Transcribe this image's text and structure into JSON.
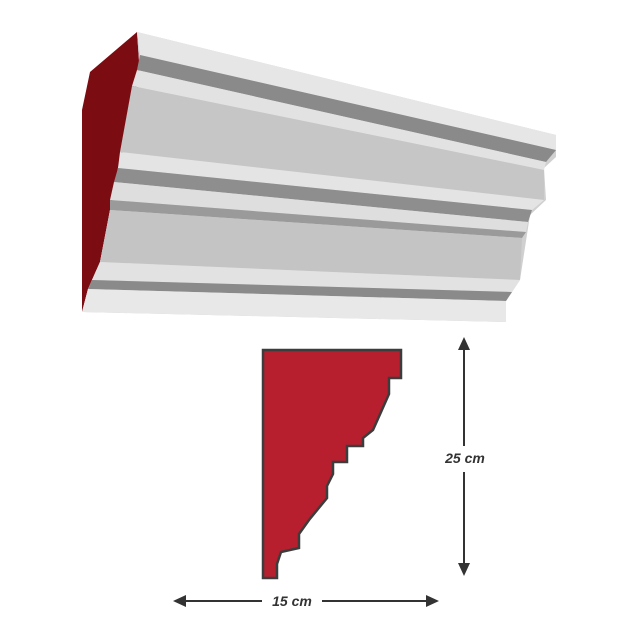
{
  "labels": {
    "height": "25 cm",
    "width": "15 cm"
  },
  "colors": {
    "profile_fill": "#b71f2e",
    "profile_stroke": "#3c3c3c",
    "end_face": "#7a0c12",
    "molding_light": "#dcdcdc",
    "molding_mid": "#c4c4c4",
    "molding_dark": "#8c8c8c",
    "arrow": "#333333"
  }
}
